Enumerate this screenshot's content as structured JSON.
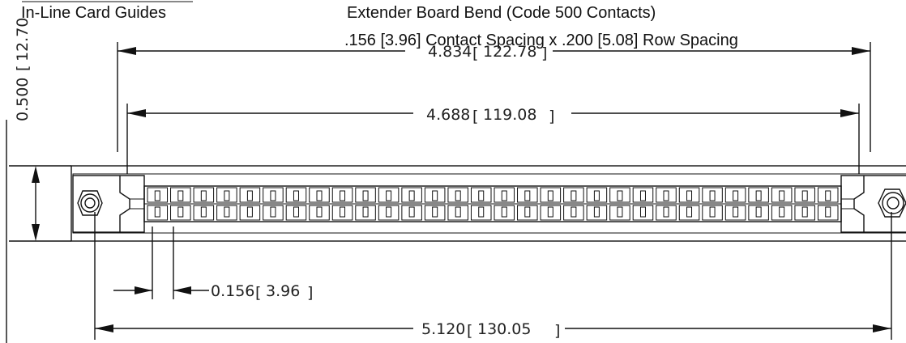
{
  "header": {
    "left_label": "In-Line Card Guides",
    "title_line1": "Extender Board Bend (Code 500 Contacts)",
    "title_line2": ".156 [3.96] Contact Spacing x .200 [5.08] Row Spacing"
  },
  "dimensions": {
    "overall_top": {
      "value": "4.834",
      "metric": "122.78"
    },
    "inner_top": {
      "value": "4.688",
      "metric": "119.08"
    },
    "height_left": {
      "value": "0.500",
      "metric": "12.70"
    },
    "pitch": {
      "value": "0.156",
      "metric": "3.96"
    },
    "overall_bottom": {
      "value": "5.120",
      "metric": "130.05"
    }
  },
  "connector": {
    "contact_pairs": 30
  }
}
